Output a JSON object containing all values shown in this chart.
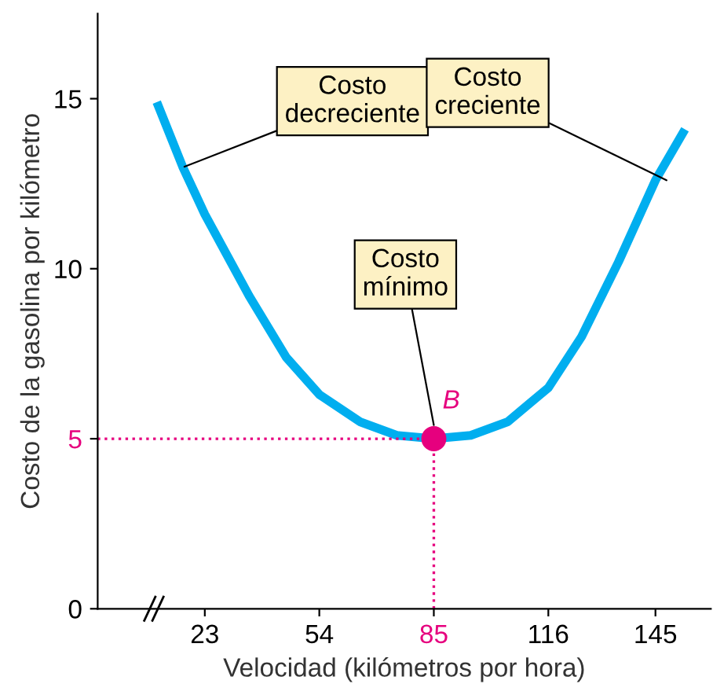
{
  "chart_data": {
    "type": "line",
    "xlabel": "Velocidad (kilómetros por hora)",
    "ylabel": "Costo de la gasolina por kilómetro",
    "xlim": [
      -6,
      160
    ],
    "ylim": [
      0,
      17.5
    ],
    "xticks": [
      23,
      54,
      85,
      116,
      145
    ],
    "yticks": [
      0,
      5,
      10,
      15
    ],
    "grid": false,
    "legend": false,
    "series": [
      {
        "color": "#00aeef",
        "x": [
          10,
          17,
          23,
          35,
          45,
          54,
          65,
          75,
          85,
          95,
          105,
          116,
          125,
          135,
          145,
          153
        ],
        "values": [
          14.9,
          13,
          11.6,
          9.2,
          7.4,
          6.3,
          5.5,
          5.1,
          5,
          5.1,
          5.5,
          6.5,
          8,
          10.2,
          12.6,
          14.1
        ]
      },
      {
        "type": "line",
        "color": "#e6007e",
        "line_style": "dotted",
        "x": [
          -6,
          85
        ],
        "values": [
          5,
          5
        ]
      },
      {
        "type": "line",
        "color": "#e6007e",
        "line_style": "dotted",
        "x": [
          85,
          85
        ],
        "values": [
          0,
          5
        ]
      },
      {
        "type": "scatter",
        "color": "#e6007e",
        "marker": "circle",
        "x": [
          85
        ],
        "values": [
          5
        ]
      }
    ],
    "annotations": [
      {
        "text": "Costo\ndecreciente",
        "x": 17.5,
        "y": 13
      },
      {
        "text": "Costo\ncreciente",
        "x": 148,
        "y": 12.6
      },
      {
        "text": "Costo\nmínimo",
        "x": 85,
        "y": 5.4
      },
      {
        "text": "B",
        "x": 85,
        "y": 5
      }
    ]
  }
}
